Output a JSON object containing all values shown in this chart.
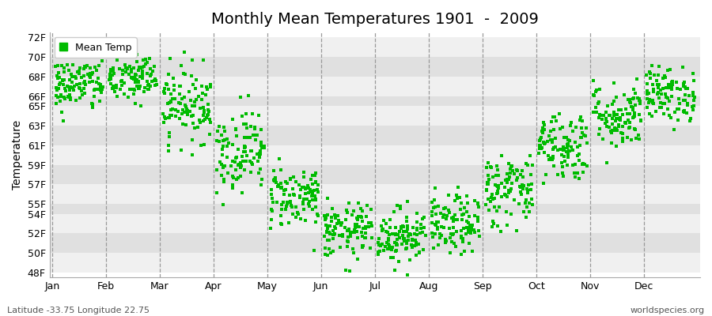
{
  "title": "Monthly Mean Temperatures 1901  -  2009",
  "ylabel": "Temperature",
  "xlabel_labels": [
    "Jan",
    "Feb",
    "Mar",
    "Apr",
    "May",
    "Jun",
    "Jul",
    "Aug",
    "Sep",
    "Oct",
    "Nov",
    "Dec"
  ],
  "ytick_labels": [
    "48F",
    "50F",
    "52F",
    "54F",
    "55F",
    "57F",
    "59F",
    "61F",
    "63F",
    "65F",
    "66F",
    "68F",
    "70F",
    "72F"
  ],
  "ytick_values": [
    48,
    50,
    52,
    54,
    55,
    57,
    59,
    61,
    63,
    65,
    66,
    68,
    70,
    72
  ],
  "ylim": [
    47.5,
    72.5
  ],
  "dot_color": "#00bb00",
  "background_color": "#ffffff",
  "strip_color_light": "#f0f0f0",
  "strip_color_dark": "#e0e0e0",
  "grid_color": "#999999",
  "title_fontsize": 14,
  "axis_fontsize": 10,
  "tick_fontsize": 9,
  "footnote_left": "Latitude -33.75 Longitude 22.75",
  "footnote_right": "worldspecies.org",
  "legend_label": "Mean Temp",
  "monthly_means": [
    67.2,
    67.8,
    65.2,
    60.5,
    55.8,
    52.2,
    51.8,
    52.8,
    56.5,
    61.0,
    64.0,
    66.2
  ],
  "monthly_stds": [
    1.4,
    1.3,
    1.9,
    2.1,
    1.6,
    1.4,
    1.4,
    1.5,
    1.9,
    1.8,
    1.7,
    1.4
  ],
  "n_years": 109,
  "seed": 42
}
